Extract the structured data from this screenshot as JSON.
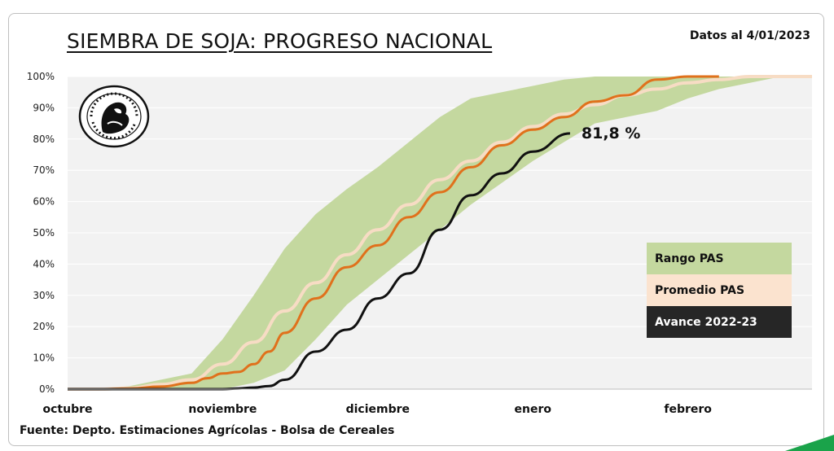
{
  "title": "SIEMBRA DE SOJA: PROGRESO NACIONAL",
  "date_note": "Datos al 4/01/2023",
  "source": "Fuente: Depto. Estimaciones Agrícolas - Bolsa de Cereales",
  "seal": {
    "icon": "bolsa-de-cereales-seal-icon",
    "text": "Commercium et Labore · Buenos Aires · 1854"
  },
  "colors": {
    "range": "#c4d89f",
    "average": "#f7dcc4",
    "current": "#111111",
    "series_orange": "#e0711c",
    "plot_bg": "#f2f2f2"
  },
  "chart_data": {
    "type": "area",
    "ylim": [
      0,
      100
    ],
    "yticks": [
      "0%",
      "10%",
      "20%",
      "30%",
      "40%",
      "50%",
      "60%",
      "70%",
      "80%",
      "90%",
      "100%"
    ],
    "xticks": [
      "octubre",
      "noviembre",
      "diciembre",
      "enero",
      "febrero"
    ],
    "x_unit": "weeks",
    "legend_position": "right",
    "end_label": "81,8 %",
    "legend": [
      {
        "key": "range",
        "label": "Rango PAS"
      },
      {
        "key": "average",
        "label": "Promedio PAS"
      },
      {
        "key": "current",
        "label": "Avance 2022-23"
      }
    ],
    "series": [
      {
        "key": "range",
        "x": [
          0,
          1,
          2,
          3,
          4,
          5,
          6,
          7,
          8,
          9,
          10,
          11,
          12,
          13,
          14,
          15,
          16,
          17,
          18,
          19,
          20,
          21,
          22,
          23,
          24
        ],
        "low": [
          0,
          0,
          0,
          0,
          0,
          0,
          2,
          6,
          16,
          27,
          35,
          43,
          51,
          59,
          66,
          73,
          79,
          85,
          87,
          89,
          93,
          96,
          98,
          100,
          100
        ],
        "high": [
          0,
          0,
          1,
          3,
          5,
          16,
          30,
          45,
          56,
          64,
          71,
          79,
          87,
          93,
          95,
          97,
          99,
          100,
          100,
          100,
          100,
          100,
          100,
          100,
          100
        ]
      },
      {
        "key": "average",
        "x": [
          0,
          1,
          2,
          3,
          4,
          5,
          6,
          7,
          8,
          9,
          10,
          11,
          12,
          13,
          14,
          15,
          16,
          17,
          18,
          19,
          20,
          21,
          22,
          23,
          24
        ],
        "values": [
          0,
          0,
          0.3,
          1.5,
          3,
          8,
          15,
          25,
          34,
          43,
          51,
          59,
          67,
          73,
          79,
          84,
          88,
          91,
          94,
          96,
          98,
          99,
          100,
          100,
          100
        ]
      },
      {
        "key": "series_orange",
        "x": [
          0,
          1,
          2,
          3,
          4,
          4.5,
          5,
          5.5,
          6,
          6.5,
          7,
          8,
          9,
          10,
          11,
          12,
          13,
          14,
          15,
          16,
          17,
          18,
          19,
          20,
          21
        ],
        "values": [
          0,
          0,
          0.2,
          0.8,
          2,
          3.5,
          5,
          5.5,
          8,
          12,
          18,
          29,
          39,
          46,
          55,
          63,
          71,
          78,
          83,
          87,
          92,
          94,
          99,
          100,
          100
        ]
      },
      {
        "key": "current",
        "x": [
          0,
          1,
          2,
          3,
          4,
          5,
          5.5,
          6,
          6.5,
          7,
          8,
          9,
          10,
          11,
          12,
          13,
          14,
          15,
          16.2
        ],
        "values": [
          0,
          0,
          0,
          0,
          0,
          0,
          0.2,
          0.5,
          1,
          3,
          12,
          19,
          29,
          37,
          51,
          62,
          69,
          76,
          81.8
        ]
      }
    ]
  }
}
